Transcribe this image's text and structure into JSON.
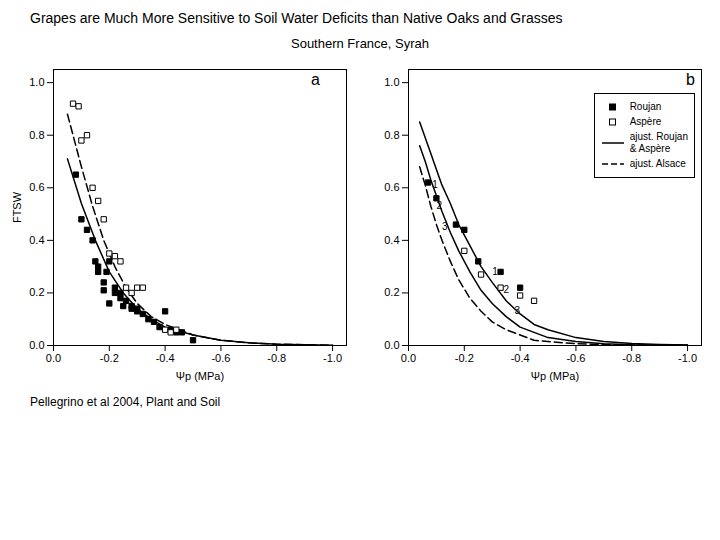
{
  "chart_data": [
    {
      "type": "scatter",
      "title": "Grapes are Much More Sensitive to Soil Water Deficits than Native Oaks and Grasses",
      "subtitle": "Southern France, Syrah",
      "caption": "Pellegrino et al 2004, Plant and Soil",
      "panel_label": "a",
      "x_label": "Ψp (MPa)",
      "y_label": "FTSW",
      "xlim": [
        0.0,
        -1.05
      ],
      "ylim": [
        0.0,
        1.05
      ],
      "xticks": [
        {
          "value": 0.0,
          "label": "0.0"
        },
        -0.2,
        -0.4,
        -0.6,
        -0.8,
        {
          "value": -1.0,
          "label": "-1.0"
        }
      ],
      "yticks": [
        {
          "value": 0.0,
          "label": "0.0"
        },
        0.2,
        0.4,
        0.6,
        0.8,
        {
          "value": 1.0,
          "label": "1.0"
        }
      ],
      "grid": false,
      "series": [
        {
          "type": "scatter",
          "marker": "square",
          "color": "black",
          "x": [
            -0.08,
            -0.1,
            -0.12,
            -0.14,
            -0.15,
            -0.16,
            -0.16,
            -0.18,
            -0.18,
            -0.19,
            -0.2,
            -0.2,
            -0.22,
            -0.22,
            -0.24,
            -0.24,
            -0.25,
            -0.26,
            -0.28,
            -0.28,
            -0.3,
            -0.3,
            -0.32,
            -0.34,
            -0.36,
            -0.38,
            -0.4,
            -0.42,
            -0.44,
            -0.46,
            -0.5
          ],
          "values": [
            0.65,
            0.48,
            0.44,
            0.4,
            0.32,
            0.3,
            0.28,
            0.24,
            0.21,
            0.28,
            0.32,
            0.16,
            0.22,
            0.2,
            0.18,
            0.2,
            0.15,
            0.17,
            0.15,
            0.14,
            0.14,
            0.13,
            0.12,
            0.1,
            0.09,
            0.07,
            0.13,
            0.06,
            0.05,
            0.05,
            0.02
          ]
        },
        {
          "type": "scatter",
          "marker": "square_open",
          "color": "black",
          "x": [
            -0.07,
            -0.09,
            -0.1,
            -0.12,
            -0.14,
            -0.16,
            -0.18,
            -0.2,
            -0.22,
            -0.24,
            -0.26,
            -0.28,
            -0.3,
            -0.32,
            -0.4,
            -0.42,
            -0.44
          ],
          "values": [
            0.92,
            0.91,
            0.78,
            0.8,
            0.6,
            0.55,
            0.48,
            0.35,
            0.34,
            0.32,
            0.22,
            0.2,
            0.22,
            0.22,
            0.06,
            0.05,
            0.06
          ]
        },
        {
          "type": "line",
          "line_style": "solid",
          "color": "black",
          "x": [
            -0.05,
            -0.1,
            -0.15,
            -0.2,
            -0.25,
            -0.3,
            -0.35,
            -0.4,
            -0.5,
            -0.6,
            -0.7,
            -0.8,
            -0.9,
            -1.0
          ],
          "values": [
            0.71,
            0.54,
            0.4,
            0.28,
            0.2,
            0.14,
            0.1,
            0.07,
            0.04,
            0.02,
            0.01,
            0.005,
            0.003,
            0.001
          ]
        },
        {
          "type": "line",
          "line_style": "dashed",
          "color": "black",
          "x": [
            -0.05,
            -0.08,
            -0.1,
            -0.14,
            -0.18,
            -0.22,
            -0.26,
            -0.3,
            -0.35,
            -0.4,
            -0.5,
            -0.6,
            -0.7,
            -0.8,
            -0.9,
            -1.0
          ],
          "values": [
            0.88,
            0.76,
            0.68,
            0.53,
            0.4,
            0.3,
            0.22,
            0.16,
            0.11,
            0.08,
            0.04,
            0.02,
            0.01,
            0.005,
            0.003,
            0.001
          ]
        }
      ]
    },
    {
      "type": "scatter",
      "panel_label": "b",
      "x_label": "Ψp (MPa)",
      "xlim": [
        0.0,
        -1.05
      ],
      "ylim": [
        0.0,
        1.05
      ],
      "xticks": [
        {
          "value": 0.0,
          "label": "0.0"
        },
        -0.2,
        -0.4,
        -0.6,
        -0.8,
        {
          "value": -1.0,
          "label": "-1.0"
        }
      ],
      "yticks": [
        {
          "value": 0.0,
          "label": "0.0"
        },
        0.2,
        0.4,
        0.6,
        0.8,
        {
          "value": 1.0,
          "label": "1.0"
        }
      ],
      "grid": false,
      "legend": "upper right",
      "series": [
        {
          "name": "Roujan",
          "type": "scatter",
          "marker": "square",
          "color": "black",
          "x": [
            -0.07,
            -0.1,
            -0.17,
            -0.2,
            -0.25,
            -0.33,
            -0.4
          ],
          "values": [
            0.62,
            0.56,
            0.46,
            0.44,
            0.32,
            0.28,
            0.22
          ]
        },
        {
          "name": "Aspère",
          "type": "scatter",
          "marker": "square_open",
          "color": "black",
          "x": [
            -0.2,
            -0.26,
            -0.33,
            -0.4,
            -0.45
          ],
          "values": [
            0.36,
            0.27,
            0.22,
            0.19,
            0.17
          ]
        },
        {
          "name": "ajust. Roujan\n& Aspère",
          "type": "line",
          "line_style": "solid",
          "color": "black",
          "x": [
            -0.04,
            -0.06,
            -0.08,
            -0.1,
            -0.12,
            -0.15,
            -0.18,
            -0.22,
            -0.26,
            -0.3,
            -0.35,
            -0.4,
            -0.45,
            -0.5,
            -0.6,
            -0.7,
            -0.8,
            -0.9,
            -1.0
          ],
          "values": [
            0.85,
            0.79,
            0.73,
            0.67,
            0.61,
            0.54,
            0.46,
            0.38,
            0.3,
            0.24,
            0.17,
            0.12,
            0.08,
            0.06,
            0.03,
            0.015,
            0.008,
            0.004,
            0.002
          ]
        },
        {
          "name": "ajust. Roujan\n& Aspère",
          "type": "line",
          "line_style": "solid",
          "color": "black",
          "x": [
            -0.04,
            -0.06,
            -0.08,
            -0.1,
            -0.12,
            -0.15,
            -0.18,
            -0.22,
            -0.26,
            -0.3,
            -0.35,
            -0.4,
            -0.45,
            -0.5,
            -0.6,
            -0.7,
            -0.8,
            -0.9,
            -1.0
          ],
          "values": [
            0.76,
            0.7,
            0.63,
            0.57,
            0.51,
            0.43,
            0.36,
            0.28,
            0.21,
            0.16,
            0.11,
            0.07,
            0.05,
            0.03,
            0.015,
            0.007,
            0.003,
            0.002,
            0.001
          ]
        },
        {
          "name": "ajust. Alsace",
          "type": "line",
          "line_style": "dashed",
          "color": "black",
          "x": [
            -0.04,
            -0.06,
            -0.08,
            -0.1,
            -0.12,
            -0.15,
            -0.18,
            -0.22,
            -0.26,
            -0.3,
            -0.35,
            -0.4,
            -0.45,
            -0.5,
            -0.6,
            -0.7,
            -0.8,
            -0.9,
            -1.0
          ],
          "values": [
            0.68,
            0.61,
            0.53,
            0.46,
            0.4,
            0.32,
            0.25,
            0.18,
            0.13,
            0.09,
            0.06,
            0.04,
            0.02,
            0.015,
            0.007,
            0.003,
            0.002,
            0.001,
            0.0005
          ]
        }
      ],
      "annotations": [
        {
          "text": "1",
          "x": -0.085,
          "y": 0.6
        },
        {
          "text": "2",
          "x": -0.1,
          "y": 0.52
        },
        {
          "text": "3",
          "x": -0.12,
          "y": 0.44
        },
        {
          "text": "1",
          "x": -0.3,
          "y": 0.27
        },
        {
          "text": "2",
          "x": -0.34,
          "y": 0.2
        },
        {
          "text": "3",
          "x": -0.38,
          "y": 0.12
        }
      ]
    }
  ]
}
